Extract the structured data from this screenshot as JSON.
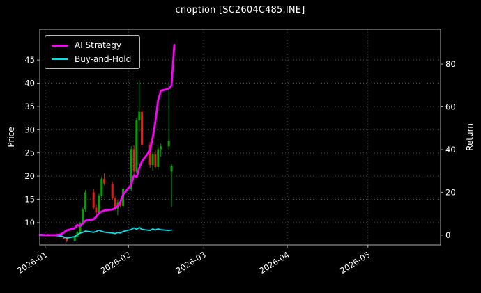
{
  "title": "cnoption [SC2604C485.INE]",
  "left_axis_label": "Price",
  "right_axis_label": "Return",
  "legend": {
    "position": "upper left",
    "items": [
      {
        "label": "AI Strategy",
        "color": "#ff00ff"
      },
      {
        "label": "Buy-and-Hold",
        "color": "#00e5ee"
      }
    ]
  },
  "chart_data": {
    "type": "candlestick+line",
    "title": "cnoption [SC2604C485.INE]",
    "grid": true,
    "x_axis": {
      "ticks": [
        "2026-01",
        "2026-02",
        "2026-03",
        "2026-04",
        "2026-05"
      ],
      "range": [
        "2025-12-30",
        "2026-05-28"
      ]
    },
    "price_axis": {
      "label": "Price",
      "ticks": [
        10,
        15,
        20,
        25,
        30,
        35,
        40,
        45
      ],
      "range": [
        5.2,
        51.6
      ]
    },
    "return_axis": {
      "label": "Return",
      "ticks": [
        0,
        20,
        40,
        60,
        80
      ],
      "range": [
        -4.6,
        96.3
      ]
    },
    "candle_format": [
      "date",
      "open",
      "high",
      "low",
      "close"
    ],
    "candles": [
      [
        "2025-12-30",
        7.5,
        7.6,
        7.35,
        7.4
      ],
      [
        "2025-12-31",
        7.4,
        7.55,
        7.3,
        7.5
      ],
      [
        "2026-01-02",
        7.5,
        7.6,
        7.35,
        7.4
      ],
      [
        "2026-01-05",
        7.4,
        7.5,
        7.25,
        7.3
      ],
      [
        "2026-01-06",
        7.3,
        7.45,
        7.2,
        7.35
      ],
      [
        "2026-01-07",
        7.35,
        7.4,
        6.9,
        7.0
      ],
      [
        "2026-01-08",
        7.0,
        7.1,
        6.4,
        6.5
      ],
      [
        "2026-01-09",
        6.5,
        6.7,
        5.8,
        6.0
      ],
      [
        "2026-01-12",
        6.0,
        7.0,
        5.9,
        6.9
      ],
      [
        "2026-01-13",
        6.9,
        8.2,
        6.8,
        8.0
      ],
      [
        "2026-01-14",
        8.0,
        10.2,
        7.8,
        10.0
      ],
      [
        "2026-01-15",
        10.0,
        13.2,
        9.6,
        12.8
      ],
      [
        "2026-01-16",
        12.8,
        17.0,
        12.4,
        16.5
      ],
      [
        "2026-01-19",
        16.5,
        17.2,
        12.8,
        13.2
      ],
      [
        "2026-01-20",
        13.2,
        14.0,
        11.6,
        12.2
      ],
      [
        "2026-01-21",
        12.2,
        16.2,
        12.0,
        15.8
      ],
      [
        "2026-01-22",
        15.8,
        19.8,
        15.4,
        19.4
      ],
      [
        "2026-01-23",
        19.4,
        20.6,
        18.0,
        18.4
      ],
      [
        "2026-01-26",
        18.4,
        18.8,
        14.8,
        15.2
      ],
      [
        "2026-01-27",
        15.2,
        15.6,
        12.6,
        13.0
      ],
      [
        "2026-01-28",
        13.0,
        14.8,
        11.6,
        14.4
      ],
      [
        "2026-01-29",
        14.4,
        15.2,
        13.2,
        13.6
      ],
      [
        "2026-01-30",
        13.6,
        17.6,
        13.2,
        17.2
      ],
      [
        "2026-02-02",
        17.2,
        26.4,
        16.8,
        25.8
      ],
      [
        "2026-02-03",
        25.8,
        26.6,
        20.4,
        21.0
      ],
      [
        "2026-02-04",
        21.0,
        32.6,
        20.6,
        32.0
      ],
      [
        "2026-02-05",
        32.0,
        40.6,
        29.6,
        33.8
      ],
      [
        "2026-02-06",
        33.8,
        34.4,
        26.2,
        26.8
      ],
      [
        "2026-02-09",
        26.8,
        27.4,
        21.8,
        22.4
      ],
      [
        "2026-02-10",
        22.4,
        25.2,
        21.2,
        24.8
      ],
      [
        "2026-02-11",
        24.8,
        25.6,
        21.6,
        22.0
      ],
      [
        "2026-02-12",
        22.0,
        26.2,
        21.4,
        25.8
      ],
      [
        "2026-02-13",
        25.8,
        27.0,
        24.2,
        26.4
      ],
      [
        "2026-02-16",
        26.4,
        39.8,
        25.6,
        27.6
      ],
      [
        "2026-02-17",
        21.0,
        22.6,
        13.4,
        22.2
      ]
    ],
    "series": [
      {
        "name": "AI Strategy",
        "axis": "return",
        "color": "#ff00ff",
        "line_width": 2.8,
        "points": [
          [
            "2025-12-30",
            0
          ],
          [
            "2026-01-02",
            0
          ],
          [
            "2026-01-05",
            0
          ],
          [
            "2026-01-06",
            0.2
          ],
          [
            "2026-01-07",
            0.4
          ],
          [
            "2026-01-08",
            1.2
          ],
          [
            "2026-01-09",
            2.2
          ],
          [
            "2026-01-12",
            3.2
          ],
          [
            "2026-01-13",
            4.8
          ],
          [
            "2026-01-14",
            4.2
          ],
          [
            "2026-01-15",
            5.4
          ],
          [
            "2026-01-16",
            6.8
          ],
          [
            "2026-01-19",
            7.4
          ],
          [
            "2026-01-20",
            8.6
          ],
          [
            "2026-01-21",
            10.2
          ],
          [
            "2026-01-22",
            11.0
          ],
          [
            "2026-01-23",
            11.5
          ],
          [
            "2026-01-26",
            12.0
          ],
          [
            "2026-01-27",
            12.6
          ],
          [
            "2026-01-28",
            13.6
          ],
          [
            "2026-01-29",
            15.5
          ],
          [
            "2026-01-30",
            19.0
          ],
          [
            "2026-02-02",
            23.5
          ],
          [
            "2026-02-03",
            28.0
          ],
          [
            "2026-02-04",
            27.0
          ],
          [
            "2026-02-05",
            31.5
          ],
          [
            "2026-02-06",
            34.5
          ],
          [
            "2026-02-09",
            39.5
          ],
          [
            "2026-02-10",
            45.5
          ],
          [
            "2026-02-11",
            53.0
          ],
          [
            "2026-02-12",
            63.0
          ],
          [
            "2026-02-13",
            67.5
          ],
          [
            "2026-02-16",
            68.5
          ],
          [
            "2026-02-17",
            70.0
          ],
          [
            "2026-02-18",
            89.0
          ]
        ]
      },
      {
        "name": "Buy-and-Hold",
        "axis": "return",
        "color": "#00e5ee",
        "line_width": 1.8,
        "points": [
          [
            "2025-12-30",
            0.3
          ],
          [
            "2026-01-02",
            0.1
          ],
          [
            "2026-01-05",
            -0.2
          ],
          [
            "2026-01-06",
            -0.3
          ],
          [
            "2026-01-07",
            -0.5
          ],
          [
            "2026-01-08",
            -0.9
          ],
          [
            "2026-01-09",
            -1.4
          ],
          [
            "2026-01-12",
            -0.7
          ],
          [
            "2026-01-13",
            0.2
          ],
          [
            "2026-01-14",
            0.9
          ],
          [
            "2026-01-15",
            1.3
          ],
          [
            "2026-01-16",
            1.9
          ],
          [
            "2026-01-19",
            1.3
          ],
          [
            "2026-01-20",
            1.7
          ],
          [
            "2026-01-21",
            2.3
          ],
          [
            "2026-01-22",
            1.8
          ],
          [
            "2026-01-23",
            1.4
          ],
          [
            "2026-01-26",
            1.0
          ],
          [
            "2026-01-27",
            0.7
          ],
          [
            "2026-01-28",
            1.2
          ],
          [
            "2026-01-29",
            1.0
          ],
          [
            "2026-01-30",
            1.7
          ],
          [
            "2026-02-02",
            2.6
          ],
          [
            "2026-02-03",
            3.4
          ],
          [
            "2026-02-04",
            2.7
          ],
          [
            "2026-02-05",
            3.6
          ],
          [
            "2026-02-06",
            2.7
          ],
          [
            "2026-02-09",
            2.2
          ],
          [
            "2026-02-10",
            2.9
          ],
          [
            "2026-02-11",
            2.4
          ],
          [
            "2026-02-12",
            2.9
          ],
          [
            "2026-02-13",
            2.5
          ],
          [
            "2026-02-16",
            2.2
          ],
          [
            "2026-02-17",
            2.4
          ]
        ]
      }
    ],
    "colors": {
      "up": "#00a600",
      "down": "#dd2222",
      "grid": "#4d4d4d",
      "spine": "#aaaaaa",
      "background": "#000000",
      "text": "#ffffff"
    }
  }
}
